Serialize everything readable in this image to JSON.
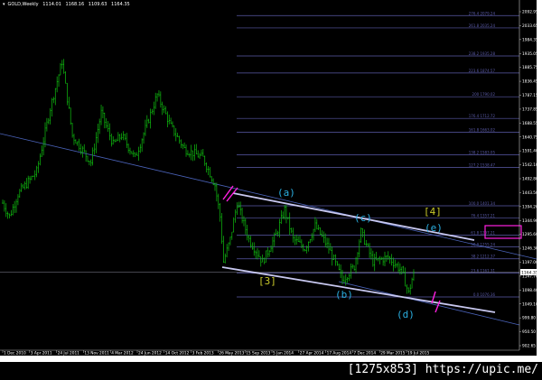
{
  "header": {
    "symbol": "GOLD,Weekly",
    "open": "1114.01",
    "high": "1168.16",
    "low": "1109.63",
    "close": "1164.35"
  },
  "watermark": "[1275x853] https://upic.me/",
  "colors": {
    "bars": "#10c010",
    "fib": "#5a5aa8",
    "channel": "#c8c8f0",
    "trendline": "#4a62b8",
    "wave_minor": "#2aaee0",
    "wave_major": "#c8c82a",
    "marker": "#ff20e0",
    "text": "#ffffff"
  },
  "chart_data": {
    "type": "line",
    "title": "GOLD,Weekly",
    "series": [
      {
        "values_week_price": [
          [
            0,
            1411
          ],
          [
            4,
            1363
          ],
          [
            9,
            1443
          ],
          [
            20,
            1523
          ],
          [
            28,
            1749
          ],
          [
            35,
            1916
          ],
          [
            41,
            1652
          ],
          [
            52,
            1556
          ],
          [
            58,
            1733
          ],
          [
            65,
            1620
          ],
          [
            70,
            1652
          ],
          [
            78,
            1572
          ],
          [
            91,
            1797
          ],
          [
            99,
            1684
          ],
          [
            107,
            1604
          ],
          [
            118,
            1572
          ],
          [
            125,
            1475
          ],
          [
            128,
            1363
          ],
          [
            130,
            1202
          ],
          [
            134,
            1282
          ],
          [
            138,
            1411
          ],
          [
            145,
            1282
          ],
          [
            153,
            1202
          ],
          [
            161,
            1298
          ],
          [
            166,
            1388
          ],
          [
            171,
            1282
          ],
          [
            178,
            1250
          ],
          [
            184,
            1330
          ],
          [
            192,
            1250
          ],
          [
            200,
            1137
          ],
          [
            207,
            1185
          ],
          [
            211,
            1308
          ],
          [
            218,
            1202
          ],
          [
            227,
            1218
          ],
          [
            235,
            1170
          ],
          [
            239,
            1089
          ],
          [
            242,
            1164.35
          ]
        ]
      }
    ],
    "ylim": [
      902.65,
      2092.95
    ],
    "y_ticks": [
      "2092.95",
      "2033.65",
      "1984.35",
      "1935.05",
      "1885.75",
      "1836.45",
      "1787.15",
      "1737.85",
      "1688.55",
      "1640.75",
      "1591.40",
      "1542.10",
      "1492.80",
      "1443.50",
      "1394.20",
      "1344.90",
      "1295.60",
      "1246.30",
      "1197.00",
      "1147.70",
      "1098.40",
      "1049.10",
      "999.80",
      "950.50",
      "902.65"
    ],
    "x_ticks": [
      "1 Dec 2010",
      "3 Apr 2011",
      "24 Jul 2011",
      "13 Nov 2011",
      "4 Mar 2012",
      "24 Jun 2012",
      "14 Oct 2012",
      "3 Feb 2013",
      "26 May 2013",
      "15 Sep 2013",
      "5 Jan 2014",
      "27 Apr 2014",
      "17 Aug 2014",
      "7 Dec 2014",
      "29 Mar 2015",
      "19 Jul 2015"
    ],
    "current_price": "1164.35",
    "fib_levels": [
      {
        "label": "276.4 2079.24",
        "price": 2079.24
      },
      {
        "label": "261.8 2035.24",
        "price": 2035.24
      },
      {
        "label": "238.2 1935.28",
        "price": 1935.28
      },
      {
        "label": "223.6 1874.57",
        "price": 1874.57
      },
      {
        "label": "200 1790.02",
        "price": 1790.02
      },
      {
        "label": "176.4 1712.72",
        "price": 1712.72
      },
      {
        "label": "161.8 1663.02",
        "price": 1663.02
      },
      {
        "label": "138.2 1583.05",
        "price": 1583.05
      },
      {
        "label": "127.2 1538.47",
        "price": 1538.47
      },
      {
        "label": "100.0 1401.34",
        "price": 1401.34
      },
      {
        "label": "76.4 1357.21",
        "price": 1357.21
      },
      {
        "label": "61.8 1297.21",
        "price": 1297.21
      },
      {
        "label": "50.0 1255.24",
        "price": 1255.24
      },
      {
        "label": "38.2 1212.37",
        "price": 1212.37
      },
      {
        "label": "23.6 1161.31",
        "price": 1161.31
      },
      {
        "label": "0.0 1076.36",
        "price": 1076.36
      }
    ],
    "wave_labels": [
      {
        "text": "(a)",
        "kind": "minor"
      },
      {
        "text": "(b)",
        "kind": "minor"
      },
      {
        "text": "(c)",
        "kind": "minor"
      },
      {
        "text": "(d)",
        "kind": "minor"
      },
      {
        "text": "(e)",
        "kind": "minor"
      },
      {
        "text": "[3]",
        "kind": "major"
      },
      {
        "text": "[4]",
        "kind": "major"
      }
    ]
  }
}
